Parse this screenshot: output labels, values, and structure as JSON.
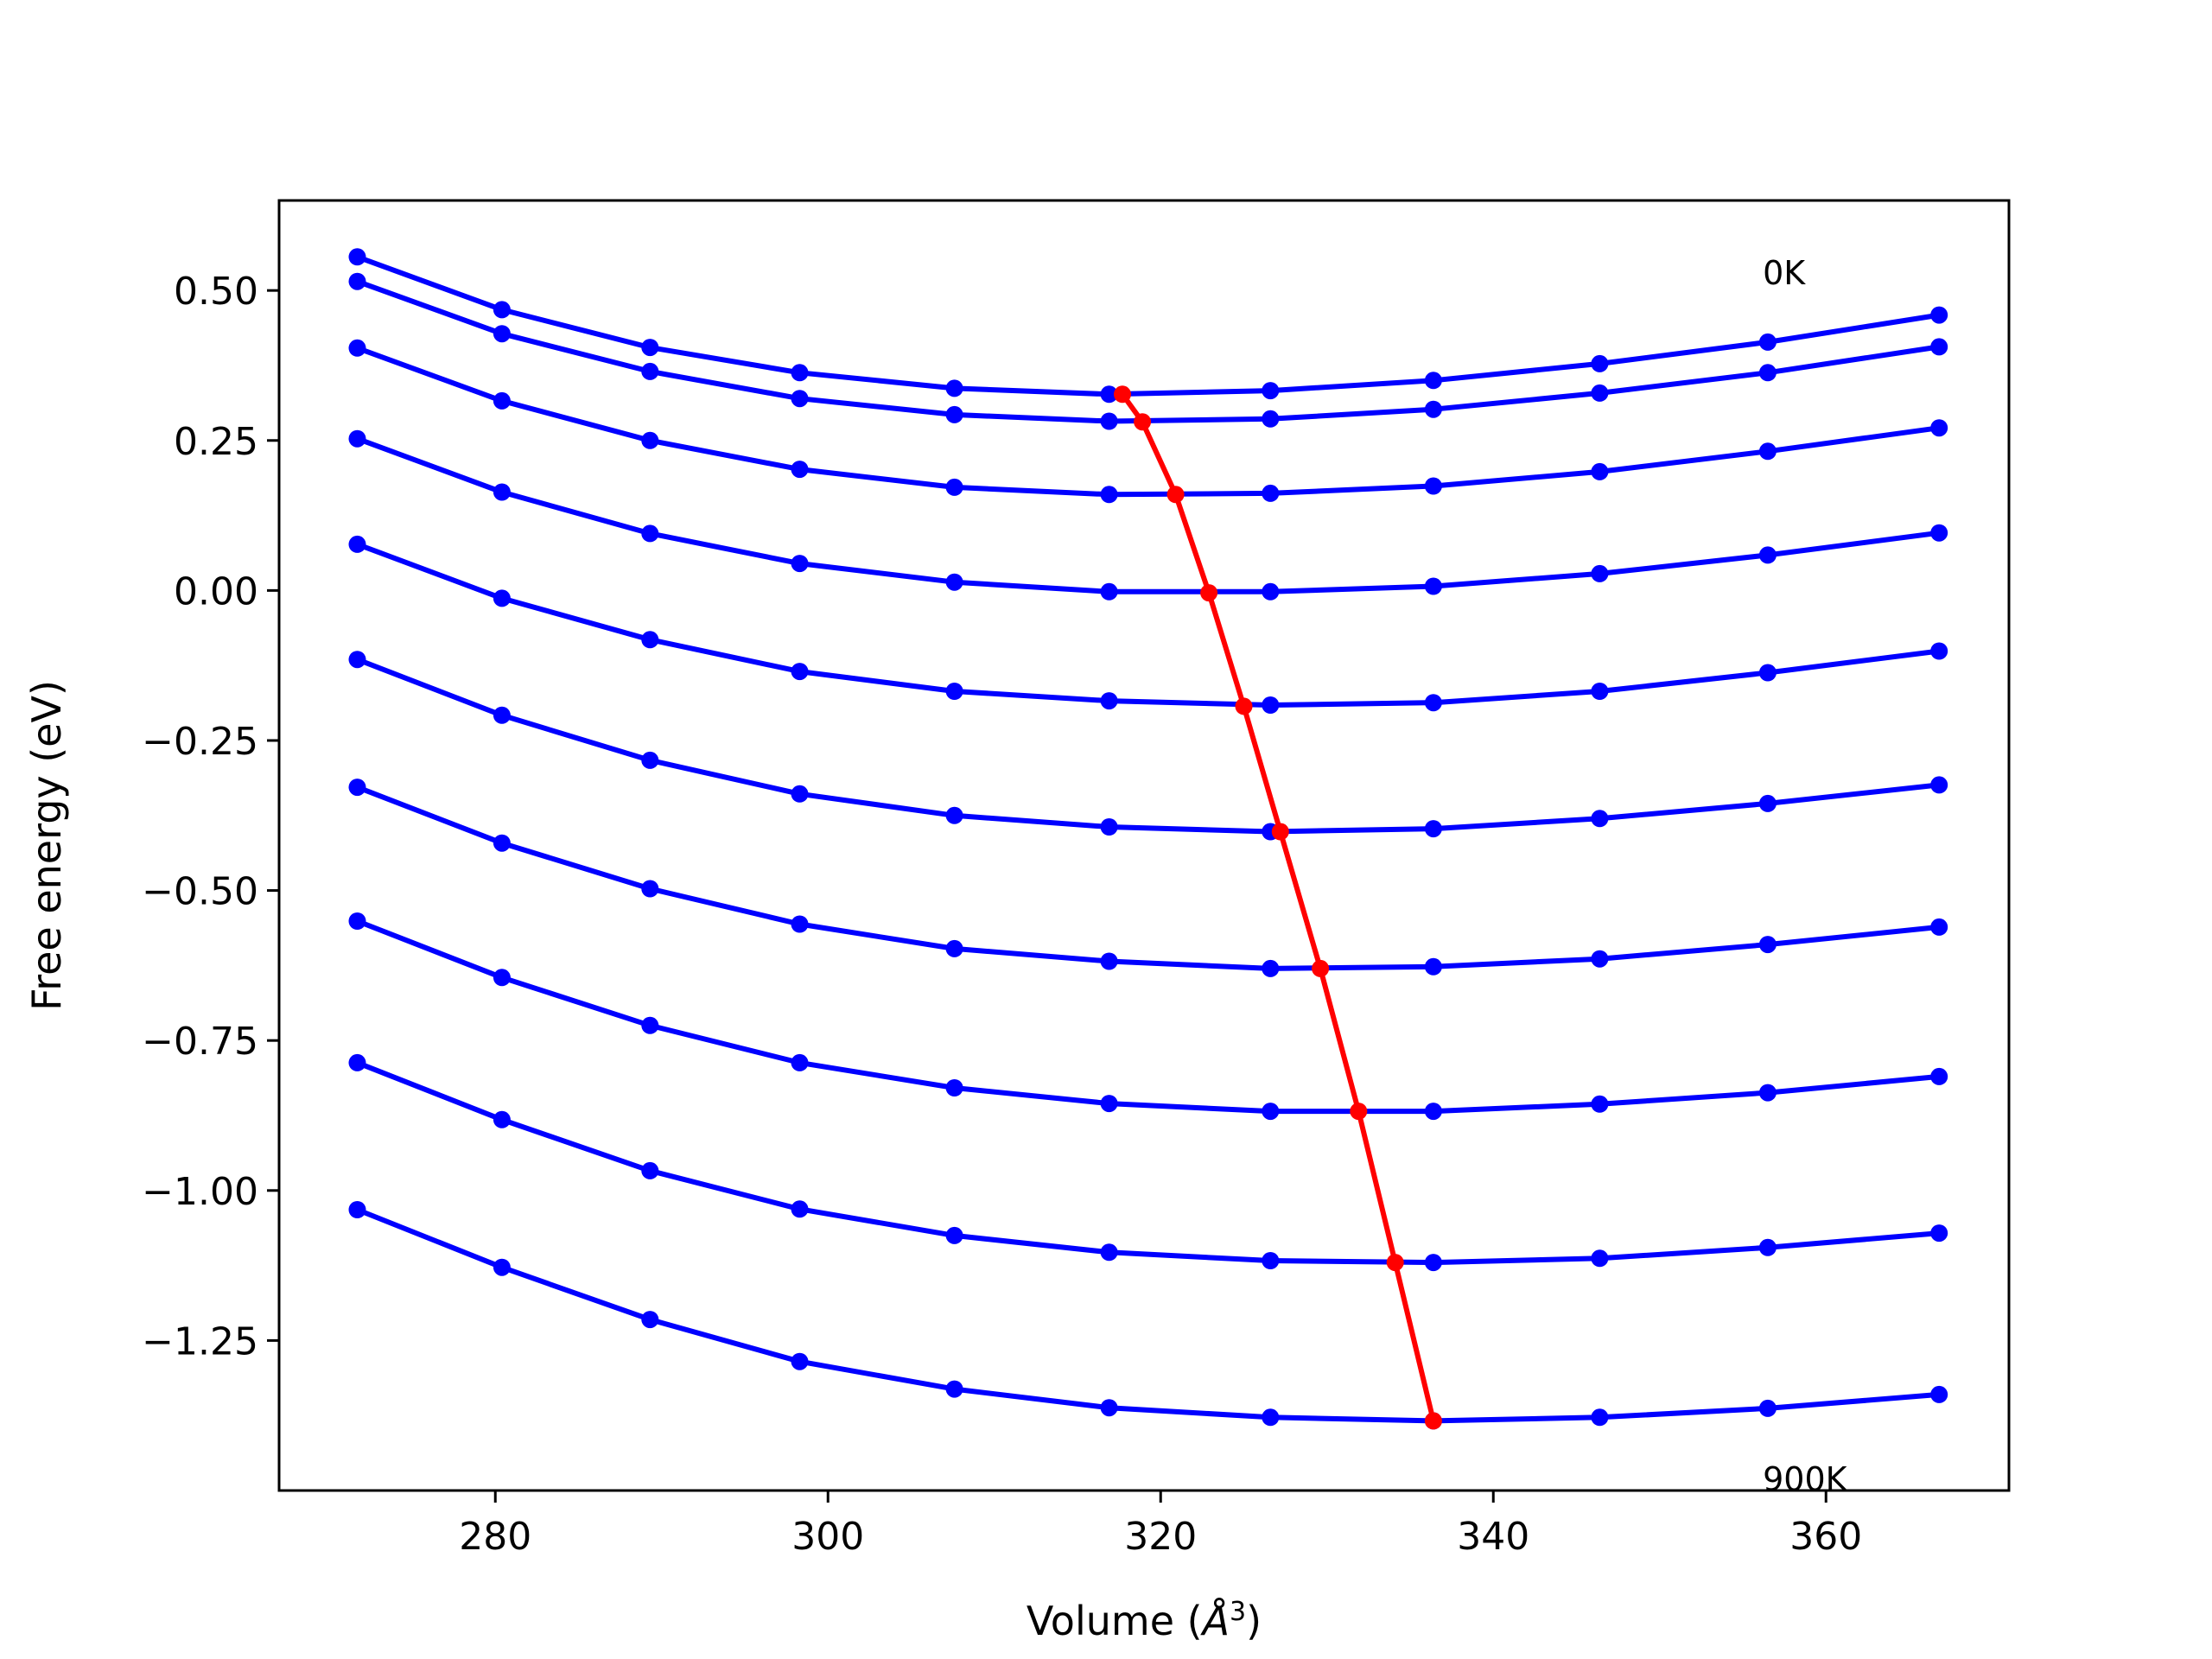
{
  "chart_data": {
    "type": "line",
    "title": "",
    "xlabel_prefix": "Volume (",
    "xlabel_unit": "Å",
    "xlabel_exp": "3",
    "xlabel_suffix": ")",
    "ylabel": "Free energy (eV)",
    "xlim": [
      267,
      371
    ],
    "ylim": [
      -1.5,
      0.65
    ],
    "xticks": [
      280,
      300,
      320,
      340,
      360
    ],
    "xtick_labels": [
      "280",
      "300",
      "320",
      "340",
      "360"
    ],
    "yticks": [
      0.5,
      0.25,
      0.0,
      -0.25,
      -0.5,
      -0.75,
      -1.0,
      -1.25
    ],
    "ytick_labels": [
      "0.50",
      "0.25",
      "0.00",
      "−0.25",
      "−0.50",
      "−0.75",
      "−1.00",
      "−1.25"
    ],
    "grid": false,
    "annotations": [
      {
        "text": "0K",
        "x": 356.2,
        "y": 0.51
      },
      {
        "text": "900K",
        "x": 356.2,
        "y": -1.5
      }
    ],
    "colors": {
      "isotherm": "#0000ff",
      "minimum": "#ff0000"
    },
    "x": [
      271.7,
      280.4,
      289.3,
      298.3,
      307.6,
      316.9,
      326.6,
      336.4,
      346.4,
      356.5,
      366.8
    ],
    "series": [
      {
        "values": [
          0.556,
          0.468,
          0.405,
          0.363,
          0.337,
          0.327,
          0.333,
          0.35,
          0.378,
          0.414,
          0.459
        ]
      },
      {
        "values": [
          0.515,
          0.428,
          0.365,
          0.32,
          0.293,
          0.282,
          0.286,
          0.302,
          0.329,
          0.363,
          0.406
        ]
      },
      {
        "values": [
          0.404,
          0.316,
          0.25,
          0.202,
          0.172,
          0.16,
          0.162,
          0.174,
          0.198,
          0.232,
          0.271
        ]
      },
      {
        "values": [
          0.077,
          -0.013,
          -0.082,
          -0.135,
          -0.168,
          -0.184,
          -0.191,
          -0.187,
          -0.168,
          -0.137,
          -0.101
        ]
      },
      {
        "values": [
          0.253,
          0.164,
          0.095,
          0.045,
          0.014,
          -0.002,
          -0.002,
          0.007,
          0.028,
          0.059,
          0.096
        ]
      },
      {
        "values": [
          -0.115,
          -0.208,
          -0.283,
          -0.339,
          -0.375,
          -0.394,
          -0.402,
          -0.397,
          -0.38,
          -0.355,
          -0.324
        ]
      },
      {
        "values": [
          -0.328,
          -0.421,
          -0.497,
          -0.556,
          -0.597,
          -0.618,
          -0.63,
          -0.627,
          -0.614,
          -0.59,
          -0.561
        ]
      },
      {
        "values": [
          -0.551,
          -0.645,
          -0.725,
          -0.787,
          -0.829,
          -0.855,
          -0.868,
          -0.868,
          -0.856,
          -0.837,
          -0.81
        ]
      },
      {
        "values": [
          -0.787,
          -0.882,
          -0.967,
          -1.031,
          -1.075,
          -1.103,
          -1.117,
          -1.12,
          -1.113,
          -1.095,
          -1.071
        ]
      },
      {
        "values": [
          -1.032,
          -1.128,
          -1.215,
          -1.285,
          -1.331,
          -1.362,
          -1.378,
          -1.384,
          -1.378,
          -1.363,
          -1.34
        ]
      }
    ],
    "minima": {
      "x": [
        317.7,
        318.9,
        320.9,
        322.9,
        325.0,
        327.2,
        329.6,
        331.9,
        334.1,
        336.4
      ],
      "y": [
        0.327,
        0.281,
        0.16,
        -0.004,
        -0.193,
        -0.402,
        -0.63,
        -0.868,
        -1.12,
        -1.384
      ]
    }
  }
}
